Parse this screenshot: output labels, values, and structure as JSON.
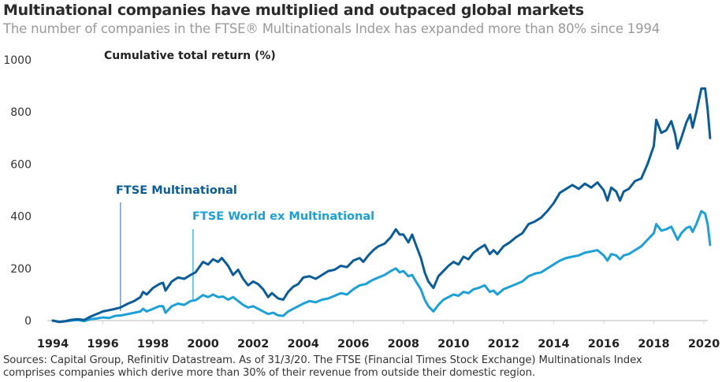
{
  "header": {
    "title": "Multinational companies have multiplied and outpaced global markets",
    "subtitle": "The number of companies in the FTSE® Multinationals Index has expanded more than 80% since 1994"
  },
  "footer": {
    "source_line1": "Sources: Capital Group, Refinitiv Datastream. As of 31/3/20. The FTSE (Financial Times Stock Exchange) Multinationals Index",
    "source_line2": "comprises companies which derive more than 30% of their revenue from outside their domestic region."
  },
  "chart_data": {
    "type": "line",
    "title": "Multinational companies have multiplied and outpaced global markets",
    "subtitle": "The number of companies in the FTSE® Multinationals Index has expanded more than 80% since 1994",
    "xlabel": "",
    "ylabel": "Cumulative total return (%)",
    "xlim": [
      1994,
      2020.25
    ],
    "ylim": [
      0,
      1000
    ],
    "x_ticks": [
      "1994",
      "1996",
      "1998",
      "2000",
      "2002",
      "2004",
      "2006",
      "2008",
      "2010",
      "2012",
      "2014",
      "2016",
      "2018",
      "2020"
    ],
    "y_ticks": [
      "0",
      "200",
      "400",
      "600",
      "800",
      "1000"
    ],
    "grid": false,
    "legend": "inline-annotations",
    "colors": {
      "multinational": "#0b5d99",
      "world_ex": "#1ca0d8",
      "annotation_line_dark": "#7a9bb5",
      "annotation_line_light": "#4eb3df",
      "axis": "#d0d0d0"
    },
    "series": [
      {
        "name": "FTSE Multinational",
        "annotation_x": 1996.7,
        "points": [
          [
            1994.0,
            0
          ],
          [
            1994.25,
            -5
          ],
          [
            1994.5,
            -2
          ],
          [
            1994.75,
            3
          ],
          [
            1995.0,
            5
          ],
          [
            1995.25,
            2
          ],
          [
            1995.5,
            15
          ],
          [
            1995.75,
            25
          ],
          [
            1996.0,
            35
          ],
          [
            1996.25,
            40
          ],
          [
            1996.5,
            45
          ],
          [
            1996.7,
            50
          ],
          [
            1997.0,
            65
          ],
          [
            1997.25,
            75
          ],
          [
            1997.5,
            90
          ],
          [
            1997.6,
            110
          ],
          [
            1997.75,
            100
          ],
          [
            1998.0,
            125
          ],
          [
            1998.25,
            140
          ],
          [
            1998.4,
            145
          ],
          [
            1998.5,
            115
          ],
          [
            1998.75,
            150
          ],
          [
            1999.0,
            165
          ],
          [
            1999.25,
            160
          ],
          [
            1999.5,
            175
          ],
          [
            1999.7,
            185
          ],
          [
            2000.0,
            225
          ],
          [
            2000.2,
            215
          ],
          [
            2000.4,
            235
          ],
          [
            2000.6,
            225
          ],
          [
            2000.75,
            240
          ],
          [
            2001.0,
            210
          ],
          [
            2001.2,
            175
          ],
          [
            2001.4,
            195
          ],
          [
            2001.6,
            160
          ],
          [
            2001.8,
            135
          ],
          [
            2002.0,
            150
          ],
          [
            2002.2,
            140
          ],
          [
            2002.4,
            120
          ],
          [
            2002.6,
            90
          ],
          [
            2002.75,
            105
          ],
          [
            2003.0,
            85
          ],
          [
            2003.2,
            80
          ],
          [
            2003.4,
            110
          ],
          [
            2003.6,
            130
          ],
          [
            2003.8,
            140
          ],
          [
            2004.0,
            165
          ],
          [
            2004.25,
            170
          ],
          [
            2004.5,
            160
          ],
          [
            2004.75,
            175
          ],
          [
            2005.0,
            190
          ],
          [
            2005.25,
            195
          ],
          [
            2005.5,
            210
          ],
          [
            2005.75,
            205
          ],
          [
            2006.0,
            230
          ],
          [
            2006.25,
            240
          ],
          [
            2006.4,
            225
          ],
          [
            2006.6,
            250
          ],
          [
            2006.8,
            270
          ],
          [
            2007.0,
            285
          ],
          [
            2007.25,
            295
          ],
          [
            2007.5,
            320
          ],
          [
            2007.7,
            350
          ],
          [
            2007.85,
            330
          ],
          [
            2008.0,
            330
          ],
          [
            2008.2,
            300
          ],
          [
            2008.35,
            330
          ],
          [
            2008.5,
            290
          ],
          [
            2008.7,
            240
          ],
          [
            2008.85,
            185
          ],
          [
            2009.0,
            150
          ],
          [
            2009.2,
            125
          ],
          [
            2009.4,
            170
          ],
          [
            2009.6,
            190
          ],
          [
            2009.8,
            210
          ],
          [
            2010.0,
            225
          ],
          [
            2010.2,
            215
          ],
          [
            2010.4,
            245
          ],
          [
            2010.6,
            235
          ],
          [
            2010.8,
            260
          ],
          [
            2011.0,
            275
          ],
          [
            2011.25,
            290
          ],
          [
            2011.45,
            255
          ],
          [
            2011.6,
            270
          ],
          [
            2011.75,
            255
          ],
          [
            2012.0,
            285
          ],
          [
            2012.25,
            300
          ],
          [
            2012.5,
            320
          ],
          [
            2012.75,
            335
          ],
          [
            2013.0,
            370
          ],
          [
            2013.25,
            380
          ],
          [
            2013.5,
            395
          ],
          [
            2013.75,
            420
          ],
          [
            2014.0,
            450
          ],
          [
            2014.25,
            490
          ],
          [
            2014.5,
            505
          ],
          [
            2014.75,
            520
          ],
          [
            2015.0,
            505
          ],
          [
            2015.25,
            525
          ],
          [
            2015.5,
            510
          ],
          [
            2015.75,
            530
          ],
          [
            2016.0,
            500
          ],
          [
            2016.15,
            460
          ],
          [
            2016.3,
            510
          ],
          [
            2016.5,
            495
          ],
          [
            2016.65,
            460
          ],
          [
            2016.8,
            495
          ],
          [
            2017.0,
            505
          ],
          [
            2017.25,
            535
          ],
          [
            2017.5,
            545
          ],
          [
            2017.75,
            600
          ],
          [
            2018.0,
            670
          ],
          [
            2018.1,
            770
          ],
          [
            2018.3,
            720
          ],
          [
            2018.5,
            730
          ],
          [
            2018.7,
            765
          ],
          [
            2018.85,
            715
          ],
          [
            2018.95,
            660
          ],
          [
            2019.1,
            700
          ],
          [
            2019.3,
            760
          ],
          [
            2019.45,
            790
          ],
          [
            2019.55,
            740
          ],
          [
            2019.7,
            800
          ],
          [
            2019.9,
            890
          ],
          [
            2020.05,
            890
          ],
          [
            2020.15,
            810
          ],
          [
            2020.25,
            700
          ]
        ]
      },
      {
        "name": "FTSE World ex Multinational",
        "annotation_x": 1999.6,
        "points": [
          [
            1994.0,
            0
          ],
          [
            1994.25,
            -5
          ],
          [
            1994.5,
            -3
          ],
          [
            1994.75,
            0
          ],
          [
            1995.0,
            2
          ],
          [
            1995.25,
            -2
          ],
          [
            1995.5,
            5
          ],
          [
            1995.75,
            8
          ],
          [
            1996.0,
            12
          ],
          [
            1996.25,
            10
          ],
          [
            1996.5,
            18
          ],
          [
            1996.75,
            20
          ],
          [
            1997.0,
            25
          ],
          [
            1997.25,
            30
          ],
          [
            1997.5,
            35
          ],
          [
            1997.6,
            45
          ],
          [
            1997.75,
            35
          ],
          [
            1998.0,
            45
          ],
          [
            1998.25,
            55
          ],
          [
            1998.4,
            55
          ],
          [
            1998.5,
            30
          ],
          [
            1998.75,
            55
          ],
          [
            1999.0,
            65
          ],
          [
            1999.25,
            60
          ],
          [
            1999.5,
            75
          ],
          [
            1999.7,
            78
          ],
          [
            2000.0,
            98
          ],
          [
            2000.2,
            90
          ],
          [
            2000.4,
            100
          ],
          [
            2000.6,
            90
          ],
          [
            2000.8,
            92
          ],
          [
            2001.0,
            80
          ],
          [
            2001.2,
            90
          ],
          [
            2001.4,
            75
          ],
          [
            2001.6,
            60
          ],
          [
            2001.8,
            50
          ],
          [
            2002.0,
            55
          ],
          [
            2002.2,
            45
          ],
          [
            2002.4,
            35
          ],
          [
            2002.6,
            25
          ],
          [
            2002.8,
            30
          ],
          [
            2003.0,
            20
          ],
          [
            2003.2,
            18
          ],
          [
            2003.4,
            35
          ],
          [
            2003.6,
            45
          ],
          [
            2003.8,
            55
          ],
          [
            2004.0,
            65
          ],
          [
            2004.25,
            75
          ],
          [
            2004.5,
            70
          ],
          [
            2004.75,
            80
          ],
          [
            2005.0,
            85
          ],
          [
            2005.25,
            95
          ],
          [
            2005.5,
            105
          ],
          [
            2005.75,
            100
          ],
          [
            2006.0,
            120
          ],
          [
            2006.25,
            135
          ],
          [
            2006.5,
            140
          ],
          [
            2006.75,
            155
          ],
          [
            2007.0,
            165
          ],
          [
            2007.25,
            175
          ],
          [
            2007.5,
            190
          ],
          [
            2007.7,
            200
          ],
          [
            2007.85,
            185
          ],
          [
            2008.0,
            190
          ],
          [
            2008.2,
            170
          ],
          [
            2008.35,
            175
          ],
          [
            2008.5,
            150
          ],
          [
            2008.7,
            120
          ],
          [
            2008.85,
            80
          ],
          [
            2009.0,
            55
          ],
          [
            2009.2,
            35
          ],
          [
            2009.4,
            60
          ],
          [
            2009.6,
            80
          ],
          [
            2009.8,
            90
          ],
          [
            2010.0,
            100
          ],
          [
            2010.2,
            95
          ],
          [
            2010.4,
            110
          ],
          [
            2010.6,
            105
          ],
          [
            2010.8,
            120
          ],
          [
            2011.0,
            125
          ],
          [
            2011.25,
            135
          ],
          [
            2011.45,
            110
          ],
          [
            2011.6,
            115
          ],
          [
            2011.75,
            100
          ],
          [
            2012.0,
            120
          ],
          [
            2012.25,
            130
          ],
          [
            2012.5,
            140
          ],
          [
            2012.75,
            150
          ],
          [
            2013.0,
            170
          ],
          [
            2013.25,
            180
          ],
          [
            2013.5,
            185
          ],
          [
            2013.75,
            200
          ],
          [
            2014.0,
            215
          ],
          [
            2014.25,
            230
          ],
          [
            2014.5,
            240
          ],
          [
            2014.75,
            245
          ],
          [
            2015.0,
            250
          ],
          [
            2015.25,
            260
          ],
          [
            2015.5,
            265
          ],
          [
            2015.75,
            270
          ],
          [
            2016.0,
            250
          ],
          [
            2016.15,
            230
          ],
          [
            2016.3,
            255
          ],
          [
            2016.5,
            250
          ],
          [
            2016.65,
            235
          ],
          [
            2016.8,
            250
          ],
          [
            2017.0,
            255
          ],
          [
            2017.25,
            270
          ],
          [
            2017.5,
            285
          ],
          [
            2017.75,
            310
          ],
          [
            2018.0,
            335
          ],
          [
            2018.1,
            370
          ],
          [
            2018.3,
            345
          ],
          [
            2018.5,
            350
          ],
          [
            2018.7,
            360
          ],
          [
            2018.85,
            330
          ],
          [
            2018.95,
            310
          ],
          [
            2019.1,
            335
          ],
          [
            2019.3,
            355
          ],
          [
            2019.45,
            360
          ],
          [
            2019.55,
            340
          ],
          [
            2019.7,
            370
          ],
          [
            2019.9,
            420
          ],
          [
            2020.05,
            410
          ],
          [
            2020.15,
            370
          ],
          [
            2020.25,
            290
          ]
        ]
      }
    ]
  }
}
